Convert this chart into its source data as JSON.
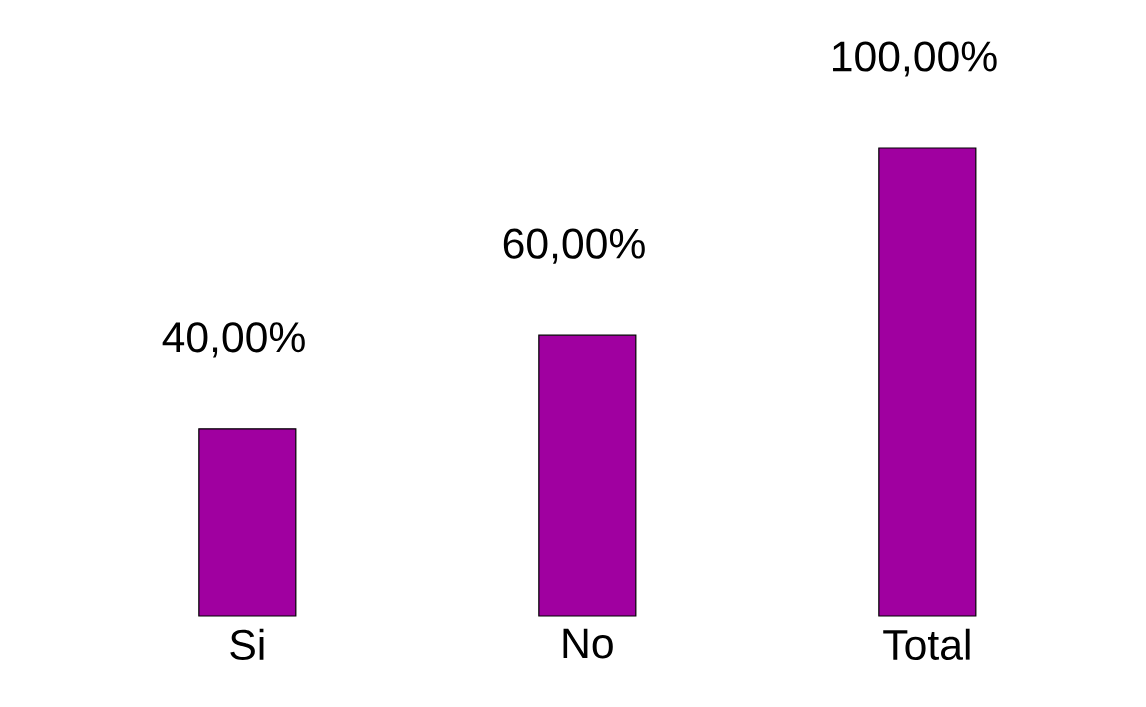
{
  "chart_data": {
    "type": "bar",
    "categories": [
      "Si",
      "No",
      "Total"
    ],
    "values": [
      40,
      60,
      100
    ],
    "value_labels": [
      "40,00%",
      "60,00%",
      "100,00%"
    ],
    "color": "#a000a0"
  }
}
